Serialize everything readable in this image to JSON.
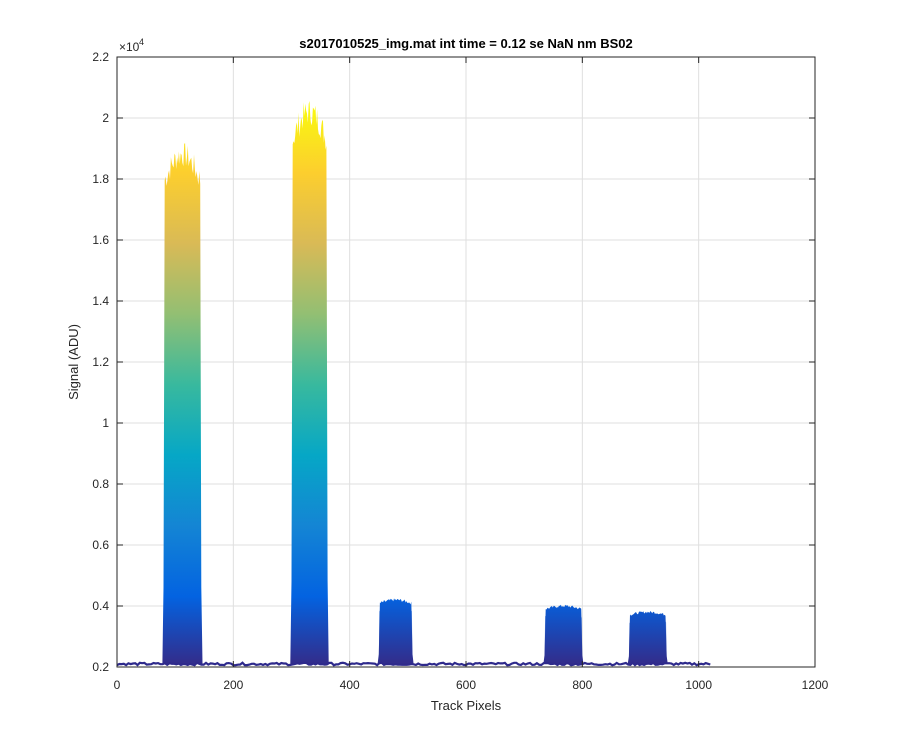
{
  "chart_data": {
    "type": "area",
    "title": "s2017010525_img.mat int time = 0.12 se  NaN nm BS02",
    "xlabel": "Track Pixels",
    "ylabel": "Signal (ADU)",
    "y_exponent_label": "×10",
    "y_exponent_power": "4",
    "xlim": [
      0,
      1200
    ],
    "ylim": [
      0.2,
      2.2
    ],
    "y_scale_factor": 10000,
    "x_ticks": [
      0,
      200,
      400,
      600,
      800,
      1000,
      1200
    ],
    "x_tick_labels": [
      "0",
      "200",
      "400",
      "600",
      "800",
      "1000",
      "1200"
    ],
    "y_ticks": [
      0.2,
      0.4,
      0.6,
      0.8,
      1.0,
      1.2,
      1.4,
      1.6,
      1.8,
      2.0,
      2.2
    ],
    "y_tick_labels": [
      "0.2",
      "0.4",
      "0.6",
      "0.8",
      "1",
      "1.2",
      "1.4",
      "1.6",
      "1.8",
      "2",
      "2.2"
    ],
    "grid": true,
    "baseline": {
      "x_start": 0,
      "x_end": 1020,
      "value": 0.21
    },
    "peaks": [
      {
        "x_start": 80,
        "x_end": 145,
        "peak": 1.88,
        "inner": 0.66
      },
      {
        "x_start": 300,
        "x_end": 362,
        "peak": 2.02,
        "inner": 0.88
      },
      {
        "x_start": 450,
        "x_end": 508,
        "peak": 0.42,
        "inner": 0.4
      },
      {
        "x_start": 735,
        "x_end": 800,
        "peak": 0.4,
        "inner": 0.38
      },
      {
        "x_start": 880,
        "x_end": 945,
        "peak": 0.38,
        "inner": 0.36
      }
    ],
    "colormap": [
      "#352a87",
      "#0363e1",
      "#1485d4",
      "#06a7c6",
      "#38b99e",
      "#92bf73",
      "#d9ba56",
      "#fcce2e",
      "#f9fb0e"
    ]
  }
}
